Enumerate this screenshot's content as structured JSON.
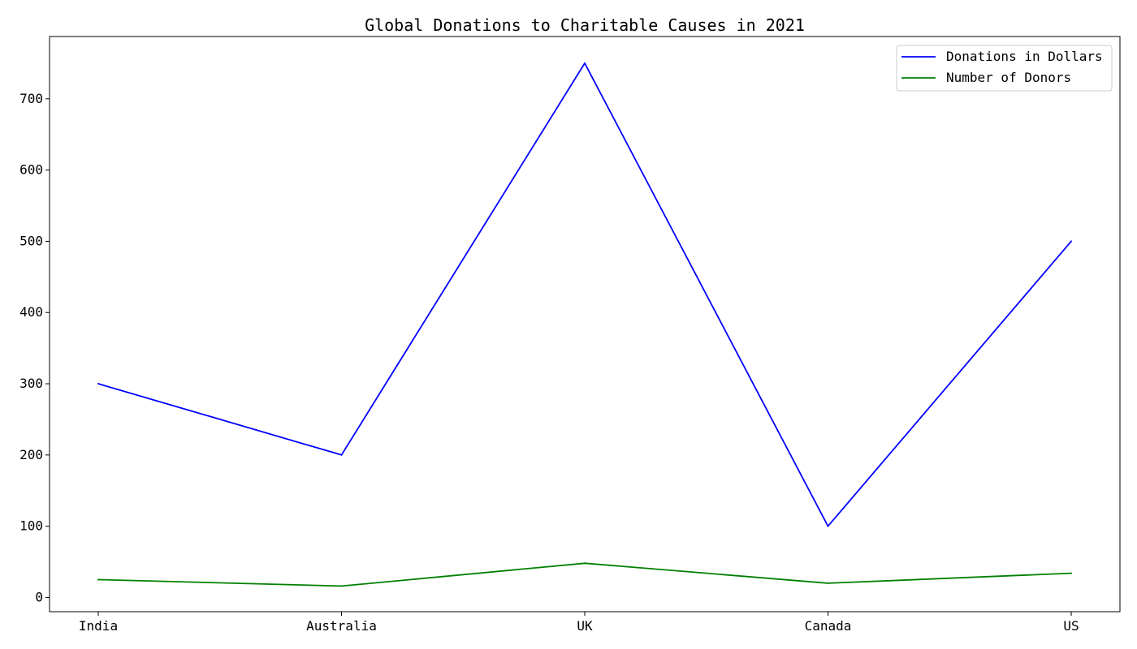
{
  "chart_data": {
    "type": "line",
    "title": "Global Donations to Charitable Causes in 2021",
    "xlabel": "",
    "ylabel": "",
    "categories": [
      "India",
      "Australia",
      "UK",
      "Canada",
      "US"
    ],
    "series": [
      {
        "name": "Donations in Dollars",
        "values": [
          300,
          200,
          750,
          100,
          500
        ],
        "color": "#0000ff"
      },
      {
        "name": "Number of Donors",
        "values": [
          25,
          16,
          48,
          20,
          34
        ],
        "color": "#008000"
      }
    ],
    "ylim": [
      -20,
      787.5
    ],
    "yticks": [
      0,
      100,
      200,
      300,
      400,
      500,
      600,
      700
    ],
    "grid": false,
    "legend_position": "top-right"
  }
}
